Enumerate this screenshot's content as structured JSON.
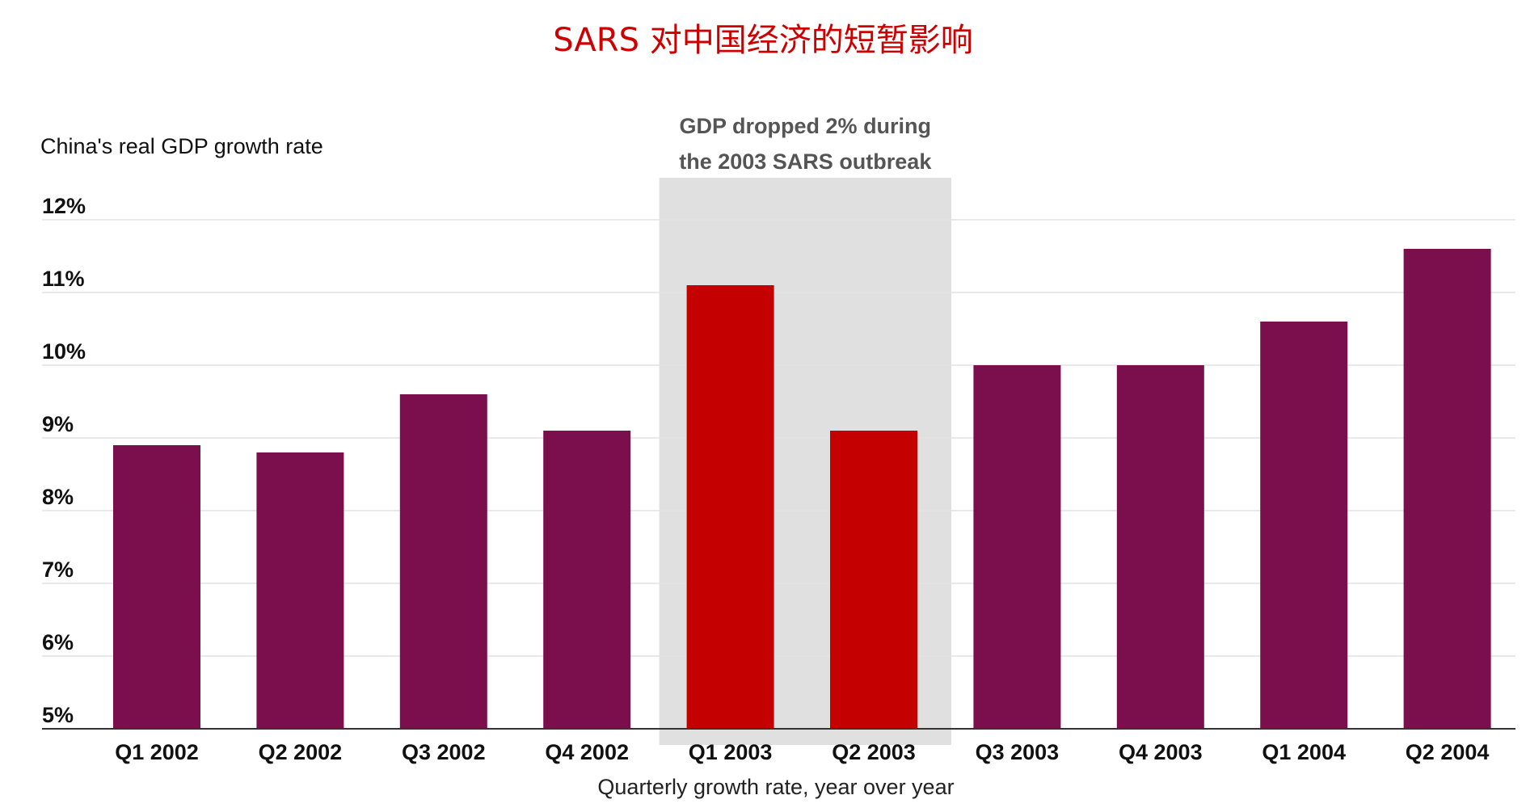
{
  "chart_data": {
    "type": "bar",
    "title": "SARS 对中国经济的短暂影响",
    "ylabel": "China's real GDP growth rate",
    "xlabel": "Quarterly growth rate, year over year",
    "categories": [
      "Q1 2002",
      "Q2 2002",
      "Q3 2002",
      "Q4 2002",
      "Q1 2003",
      "Q2 2003",
      "Q3 2003",
      "Q4 2003",
      "Q1 2004",
      "Q2 2004"
    ],
    "values": [
      8.9,
      8.8,
      9.6,
      9.1,
      11.1,
      9.1,
      10.0,
      10.0,
      10.6,
      11.6
    ],
    "highlighted": [
      false,
      false,
      false,
      false,
      true,
      true,
      false,
      false,
      false,
      false
    ],
    "ylim": [
      5,
      12
    ],
    "yticks": [
      5,
      6,
      7,
      8,
      9,
      10,
      11,
      12
    ],
    "ytick_labels": [
      "5%",
      "6%",
      "7%",
      "8%",
      "9%",
      "10%",
      "11%",
      "12%"
    ],
    "grid": true,
    "legend": false,
    "colors": {
      "bar": "#7b0f4e",
      "bar_highlight": "#c40000",
      "title": "#cc0000",
      "shade": "#e0e0e0"
    },
    "annotation": {
      "lines": [
        "GDP dropped 2% during",
        "the 2003 SARS outbreak"
      ],
      "spans_categories": [
        "Q1 2003",
        "Q2 2003"
      ]
    }
  }
}
